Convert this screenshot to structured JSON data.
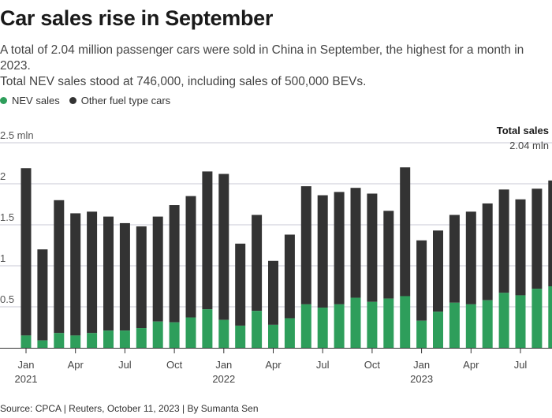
{
  "header": {
    "title": "Car sales rise in September",
    "subtitle_line1": "A total of 2.04 million passenger cars were sold in China in September, the highest for a month in 2023.",
    "subtitle_line2": "Total NEV sales stood at 746,000, including sales of 500,000 BEVs."
  },
  "legend": {
    "nev_label": "NEV sales",
    "other_label": "Other fuel type cars"
  },
  "colors": {
    "nev": "#2e9e5b",
    "other": "#333333",
    "grid": "#c9c9d6"
  },
  "annotation": {
    "title": "Total sales",
    "value": "2.04 mln"
  },
  "footer": {
    "source": "Source: CPCA | Reuters, October 11, 2023 | By Sumanta Sen"
  },
  "chart_data": {
    "type": "bar",
    "stacked": true,
    "title": "Car sales rise in September",
    "xlabel": "",
    "ylabel": "",
    "ylim": [
      0,
      2.5
    ],
    "y_ticks": [
      {
        "value": 0.5,
        "label": "0.5"
      },
      {
        "value": 1,
        "label": "1"
      },
      {
        "value": 1.5,
        "label": "1.5"
      },
      {
        "value": 2,
        "label": "2"
      },
      {
        "value": 2.5,
        "label": "2.5 mln"
      }
    ],
    "x_ticks": [
      {
        "index": 0,
        "label": "Jan",
        "year": "2021"
      },
      {
        "index": 3,
        "label": "Apr",
        "year": ""
      },
      {
        "index": 6,
        "label": "Jul",
        "year": ""
      },
      {
        "index": 9,
        "label": "Oct",
        "year": ""
      },
      {
        "index": 12,
        "label": "Jan",
        "year": "2022"
      },
      {
        "index": 15,
        "label": "Apr",
        "year": ""
      },
      {
        "index": 18,
        "label": "Jul",
        "year": ""
      },
      {
        "index": 21,
        "label": "Oct",
        "year": ""
      },
      {
        "index": 24,
        "label": "Jan",
        "year": "2023"
      },
      {
        "index": 27,
        "label": "Apr",
        "year": ""
      },
      {
        "index": 30,
        "label": "Jul",
        "year": ""
      }
    ],
    "categories": [
      "2021-01",
      "2021-02",
      "2021-03",
      "2021-04",
      "2021-05",
      "2021-06",
      "2021-07",
      "2021-08",
      "2021-09",
      "2021-10",
      "2021-11",
      "2021-12",
      "2022-01",
      "2022-02",
      "2022-03",
      "2022-04",
      "2022-05",
      "2022-06",
      "2022-07",
      "2022-08",
      "2022-09",
      "2022-10",
      "2022-11",
      "2022-12",
      "2023-01",
      "2023-02",
      "2023-03",
      "2023-04",
      "2023-05",
      "2023-06",
      "2023-07",
      "2023-08",
      "2023-09"
    ],
    "series": [
      {
        "name": "NEV sales",
        "values": [
          0.15,
          0.09,
          0.18,
          0.15,
          0.18,
          0.21,
          0.21,
          0.24,
          0.32,
          0.31,
          0.37,
          0.47,
          0.34,
          0.27,
          0.45,
          0.28,
          0.36,
          0.53,
          0.49,
          0.53,
          0.61,
          0.56,
          0.6,
          0.63,
          0.33,
          0.44,
          0.55,
          0.53,
          0.58,
          0.67,
          0.64,
          0.72,
          0.75
        ]
      },
      {
        "name": "Other fuel type cars",
        "values": [
          2.04,
          1.11,
          1.62,
          1.49,
          1.48,
          1.39,
          1.31,
          1.24,
          1.28,
          1.43,
          1.48,
          1.68,
          1.78,
          1.0,
          1.17,
          0.78,
          1.02,
          1.44,
          1.37,
          1.37,
          1.34,
          1.32,
          1.07,
          1.57,
          0.98,
          0.99,
          1.07,
          1.13,
          1.18,
          1.26,
          1.17,
          1.22,
          1.29
        ]
      }
    ],
    "totals": [
      2.19,
      1.2,
      1.8,
      1.64,
      1.66,
      1.6,
      1.52,
      1.48,
      1.6,
      1.74,
      1.85,
      2.15,
      2.12,
      1.27,
      1.62,
      1.06,
      1.38,
      1.97,
      1.86,
      1.9,
      1.95,
      1.88,
      1.67,
      2.2,
      1.31,
      1.43,
      1.62,
      1.66,
      1.76,
      1.93,
      1.81,
      1.94,
      2.04
    ],
    "legend_position": "top-left"
  }
}
